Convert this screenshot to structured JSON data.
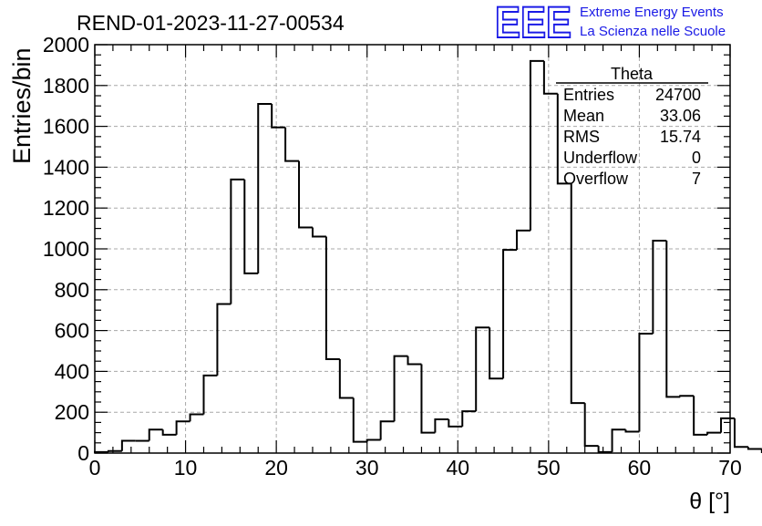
{
  "logo": {
    "letters": "EEE",
    "line1": "Extreme Energy Events",
    "line2": "La Scienza nelle Scuole",
    "color": "#1a1ae6"
  },
  "chart_data": {
    "type": "histogram",
    "title": "REND-01-2023-11-27-00534",
    "xlabel": "θ [°]",
    "ylabel": "Entries/bin",
    "xlim": [
      0,
      70
    ],
    "ylim": [
      0,
      2000
    ],
    "x_ticks": [
      "0",
      "10",
      "20",
      "30",
      "40",
      "50",
      "60",
      "70"
    ],
    "y_ticks": [
      "0",
      "200",
      "400",
      "600",
      "800",
      "1000",
      "1200",
      "1400",
      "1600",
      "1800",
      "2000"
    ],
    "grid": true,
    "bin_width": 1.5,
    "bin_edges_start": 0,
    "values": [
      5,
      10,
      60,
      60,
      115,
      90,
      155,
      190,
      380,
      730,
      1340,
      880,
      1710,
      1595,
      1430,
      1105,
      1060,
      460,
      270,
      55,
      65,
      155,
      475,
      435,
      100,
      165,
      130,
      205,
      615,
      365,
      995,
      1090,
      1920,
      1760,
      1320,
      245,
      35,
      5,
      115,
      105,
      585,
      1040,
      275,
      280,
      90,
      100,
      170,
      30,
      20
    ],
    "stats": {
      "title": "Theta",
      "rows": [
        {
          "label": "Entries",
          "value": "24700"
        },
        {
          "label": "Mean",
          "value": "33.06"
        },
        {
          "label": "RMS",
          "value": "15.74"
        },
        {
          "label": "Underflow",
          "value": "0"
        },
        {
          "label": "Overflow",
          "value": "7"
        }
      ]
    }
  }
}
